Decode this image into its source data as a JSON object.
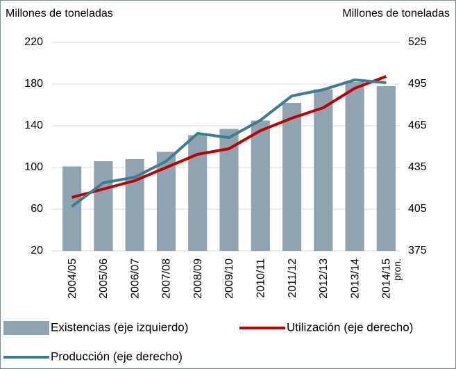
{
  "chart_data": {
    "type": "bar_line_combo",
    "y_label": "Millones de  toneladas",
    "y2_label": "Millones de  toneladas",
    "categories": [
      "2004/05",
      "2005/06",
      "2006/07",
      "2007/08",
      "2008/09",
      "2009/10",
      "2010/11",
      "2011/12",
      "2012/13",
      "2013/14",
      "2014/15"
    ],
    "annotation": "pron.",
    "ylim": [
      20,
      220
    ],
    "yticks": [
      20,
      60,
      100,
      140,
      180,
      220
    ],
    "y2lim": [
      375,
      525
    ],
    "y2ticks": [
      375,
      405,
      435,
      465,
      495,
      525
    ],
    "grid": true,
    "legend": "bottom",
    "series": [
      {
        "name": "Existencias (eje izquierdo)",
        "type": "bar",
        "color": "#8fa3b1",
        "values": [
          101,
          106,
          108,
          115,
          131,
          137,
          145,
          162,
          175,
          182,
          178
        ]
      },
      {
        "name": "Utilización (eje derecho)",
        "type": "line",
        "axis": "y2",
        "color": "#c00000",
        "values": [
          413.5,
          419.5,
          425.5,
          435,
          444.5,
          448.5,
          461.5,
          470.5,
          478,
          492,
          500.5
        ]
      },
      {
        "name": "Producción (eje derecho)",
        "type": "line",
        "axis": "y2",
        "color": "#3d7d91",
        "values": [
          407,
          424,
          428,
          439.5,
          459.5,
          456.5,
          469,
          486.5,
          491,
          498,
          496
        ]
      }
    ]
  }
}
